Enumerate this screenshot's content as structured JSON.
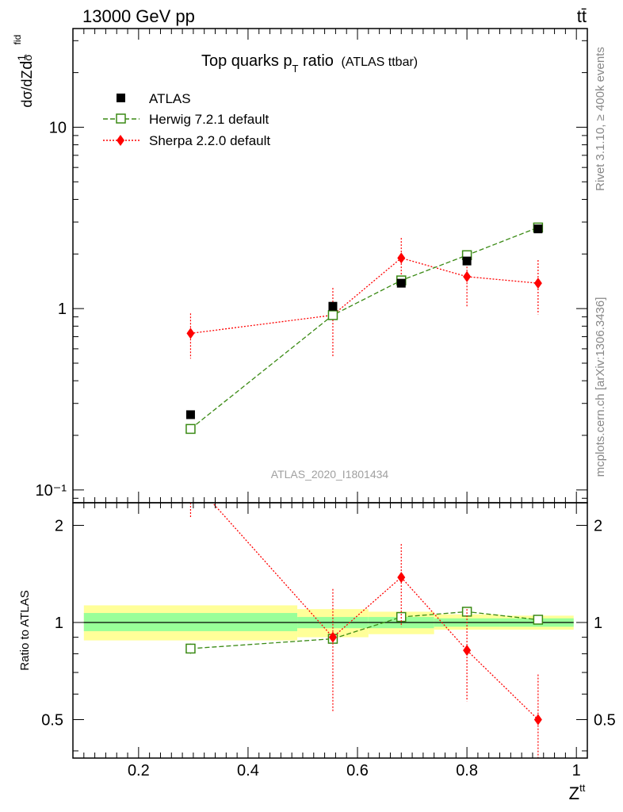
{
  "header": {
    "energy_label": "13000 GeV pp",
    "process_label": "tt̄",
    "title_main": "Top quarks p",
    "title_sub": "T",
    "title_suffix": " ratio",
    "title_extra": "(ATLAS ttbar)",
    "analysis_label": "ATLAS_2020_I1801434",
    "side_label_top": "Rivet 3.1.10, ≥ 400k events",
    "side_label_bottom": "mcplots.cern.ch [arXiv:1306.3436]"
  },
  "colors": {
    "data": "#000000",
    "herwig": "#3a8a14",
    "sherpa": "#ff0000",
    "band_inner": "#99ff99",
    "band_outer": "#ffff99"
  },
  "chart_data": {
    "type": "line",
    "xlabel": "Z^tt",
    "ylabel_main": "1/σ dσ^fid / d Z^tt",
    "ylabel_ratio": "Ratio to ATLAS",
    "xlim": [
      0.08,
      1.02
    ],
    "ylim_main": [
      0.085,
      35
    ],
    "ylim_ratio": [
      0.38,
      2.35
    ],
    "y_scale": "log",
    "x_ticks": [
      0.2,
      0.4,
      0.6,
      0.8,
      1.0
    ],
    "x_tick_labels": [
      "0.2",
      "0.4",
      "0.6",
      "0.8",
      "1"
    ],
    "y_ticks_main": [
      0.1,
      1,
      10
    ],
    "y_tick_labels_main": [
      "10⁻¹",
      "1",
      "10"
    ],
    "y_ticks_ratio": [
      0.5,
      1,
      2
    ],
    "y_tick_labels_ratio": [
      "0.5",
      "1",
      "2"
    ],
    "legend_position": "top-left",
    "series": [
      {
        "name": "ATLAS",
        "style": "data",
        "x": [
          0.295,
          0.555,
          0.68,
          0.8,
          0.93
        ],
        "y": [
          0.26,
          1.03,
          1.38,
          1.83,
          2.75
        ],
        "yerr": [
          0.01,
          0.05,
          0.05,
          0.08,
          0.1
        ],
        "ratio": [
          1,
          1,
          1,
          1,
          1
        ]
      },
      {
        "name": "Herwig 7.2.1 default",
        "style": "herwig",
        "x": [
          0.295,
          0.555,
          0.68,
          0.8,
          0.93
        ],
        "y": [
          0.217,
          0.92,
          1.43,
          1.97,
          2.8
        ],
        "yerr": [
          0.01,
          0.03,
          0.04,
          0.05,
          0.06
        ],
        "ratio": [
          0.83,
          0.89,
          1.04,
          1.08,
          1.02
        ],
        "ratio_err": [
          0.03,
          0.02,
          0.02,
          0.02,
          0.02
        ]
      },
      {
        "name": "Sherpa 2.2.0 default",
        "style": "sherpa",
        "x": [
          0.295,
          0.555,
          0.68,
          0.8,
          0.93
        ],
        "y": [
          0.73,
          0.92,
          1.9,
          1.5,
          1.38
        ],
        "y_lo": [
          0.53,
          0.54,
          1.4,
          1.02,
          0.93
        ],
        "y_hi": [
          0.94,
          1.3,
          2.45,
          2.0,
          1.85
        ],
        "ratio": [
          2.8,
          0.9,
          1.38,
          0.82,
          0.5
        ],
        "ratio_lo": [
          2.1,
          0.53,
          0.97,
          0.57,
          0.33
        ],
        "ratio_hi": [
          3.6,
          1.27,
          1.75,
          1.1,
          0.69
        ]
      }
    ],
    "uncertainty_bands": [
      {
        "xlo": 0.1,
        "xhi": 0.49,
        "inner": [
          0.94,
          1.07
        ],
        "outer": [
          0.88,
          1.13
        ]
      },
      {
        "xlo": 0.49,
        "xhi": 0.62,
        "inner": [
          0.96,
          1.04
        ],
        "outer": [
          0.9,
          1.1
        ]
      },
      {
        "xlo": 0.62,
        "xhi": 0.74,
        "inner": [
          0.96,
          1.04
        ],
        "outer": [
          0.92,
          1.08
        ]
      },
      {
        "xlo": 0.74,
        "xhi": 0.86,
        "inner": [
          0.97,
          1.03
        ],
        "outer": [
          0.95,
          1.06
        ]
      },
      {
        "xlo": 0.86,
        "xhi": 0.995,
        "inner": [
          0.97,
          1.03
        ],
        "outer": [
          0.95,
          1.05
        ]
      }
    ]
  }
}
